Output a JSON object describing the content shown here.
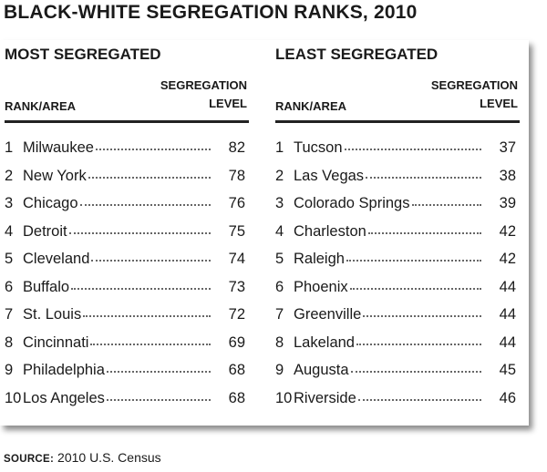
{
  "title": "BLACK-WHITE SEGREGATION RANKS, 2010",
  "source_label": "SOURCE:",
  "source_text": "2010 U.S. Census",
  "most": {
    "title": "MOST SEGREGATED",
    "rank_header": "RANK/AREA",
    "level_header_1": "SEGREGATION",
    "level_header_2": "LEVEL",
    "rows": [
      {
        "rank": "1",
        "name": "Milwaukee",
        "value": "82"
      },
      {
        "rank": "2",
        "name": "New York",
        "value": "78"
      },
      {
        "rank": "3",
        "name": "Chicago",
        "value": "76"
      },
      {
        "rank": "4",
        "name": "Detroit",
        "value": "75"
      },
      {
        "rank": "5",
        "name": "Cleveland",
        "value": "74"
      },
      {
        "rank": "6",
        "name": "Buffalo",
        "value": "73"
      },
      {
        "rank": "7",
        "name": "St. Louis",
        "value": "72"
      },
      {
        "rank": "8",
        "name": "Cincinnati",
        "value": "69"
      },
      {
        "rank": "9",
        "name": "Philadelphia",
        "value": "68"
      },
      {
        "rank": "10",
        "name": "Los Angeles",
        "value": "68"
      }
    ]
  },
  "least": {
    "title": "LEAST SEGREGATED",
    "rank_header": "RANK/AREA",
    "level_header_1": "SEGREGATION",
    "level_header_2": "LEVEL",
    "rows": [
      {
        "rank": "1",
        "name": "Tucson",
        "value": "37"
      },
      {
        "rank": "2",
        "name": "Las Vegas",
        "value": "38"
      },
      {
        "rank": "3",
        "name": "Colorado Springs",
        "value": "39"
      },
      {
        "rank": "4",
        "name": "Charleston",
        "value": "42"
      },
      {
        "rank": "5",
        "name": "Raleigh",
        "value": "42"
      },
      {
        "rank": "6",
        "name": "Phoenix",
        "value": "44"
      },
      {
        "rank": "7",
        "name": "Greenville",
        "value": "44"
      },
      {
        "rank": "8",
        "name": "Lakeland",
        "value": "44"
      },
      {
        "rank": "9",
        "name": "Augusta",
        "value": "45"
      },
      {
        "rank": "10",
        "name": "Riverside",
        "value": "46"
      }
    ]
  }
}
